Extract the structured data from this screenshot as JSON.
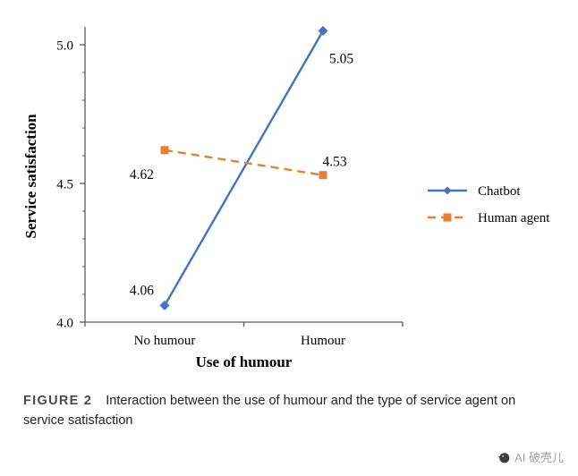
{
  "chart_data": {
    "type": "line",
    "categories": [
      "No humour",
      "Humour"
    ],
    "series": [
      {
        "name": "Chatbot",
        "values": [
          4.06,
          5.05
        ],
        "color": "#4472C4",
        "dash": "solid",
        "marker": "diamond"
      },
      {
        "name": "Human agent",
        "values": [
          4.62,
          4.53
        ],
        "color": "#ED7D31",
        "dash": "dashed",
        "marker": "square"
      }
    ],
    "data_labels": [
      [
        "4.06",
        "5.05"
      ],
      [
        "4.62",
        "4.53"
      ]
    ],
    "ylabel": "Service satisfaction",
    "xlabel": "Use of humour",
    "ylim": [
      4.0,
      5.0
    ],
    "yticks": [
      4.0,
      4.5,
      5.0
    ],
    "ytick_labels": [
      "4.0",
      "4.5",
      "5.0"
    ],
    "minor_tick_step": 0.1,
    "grid": false,
    "legend_position": "right",
    "axis_color": "#595959"
  },
  "caption": {
    "label": "FIGURE 2",
    "text": "Interaction between the use of humour and the type of service agent on service satisfaction"
  },
  "watermark": {
    "text": "AI 破壳儿"
  }
}
